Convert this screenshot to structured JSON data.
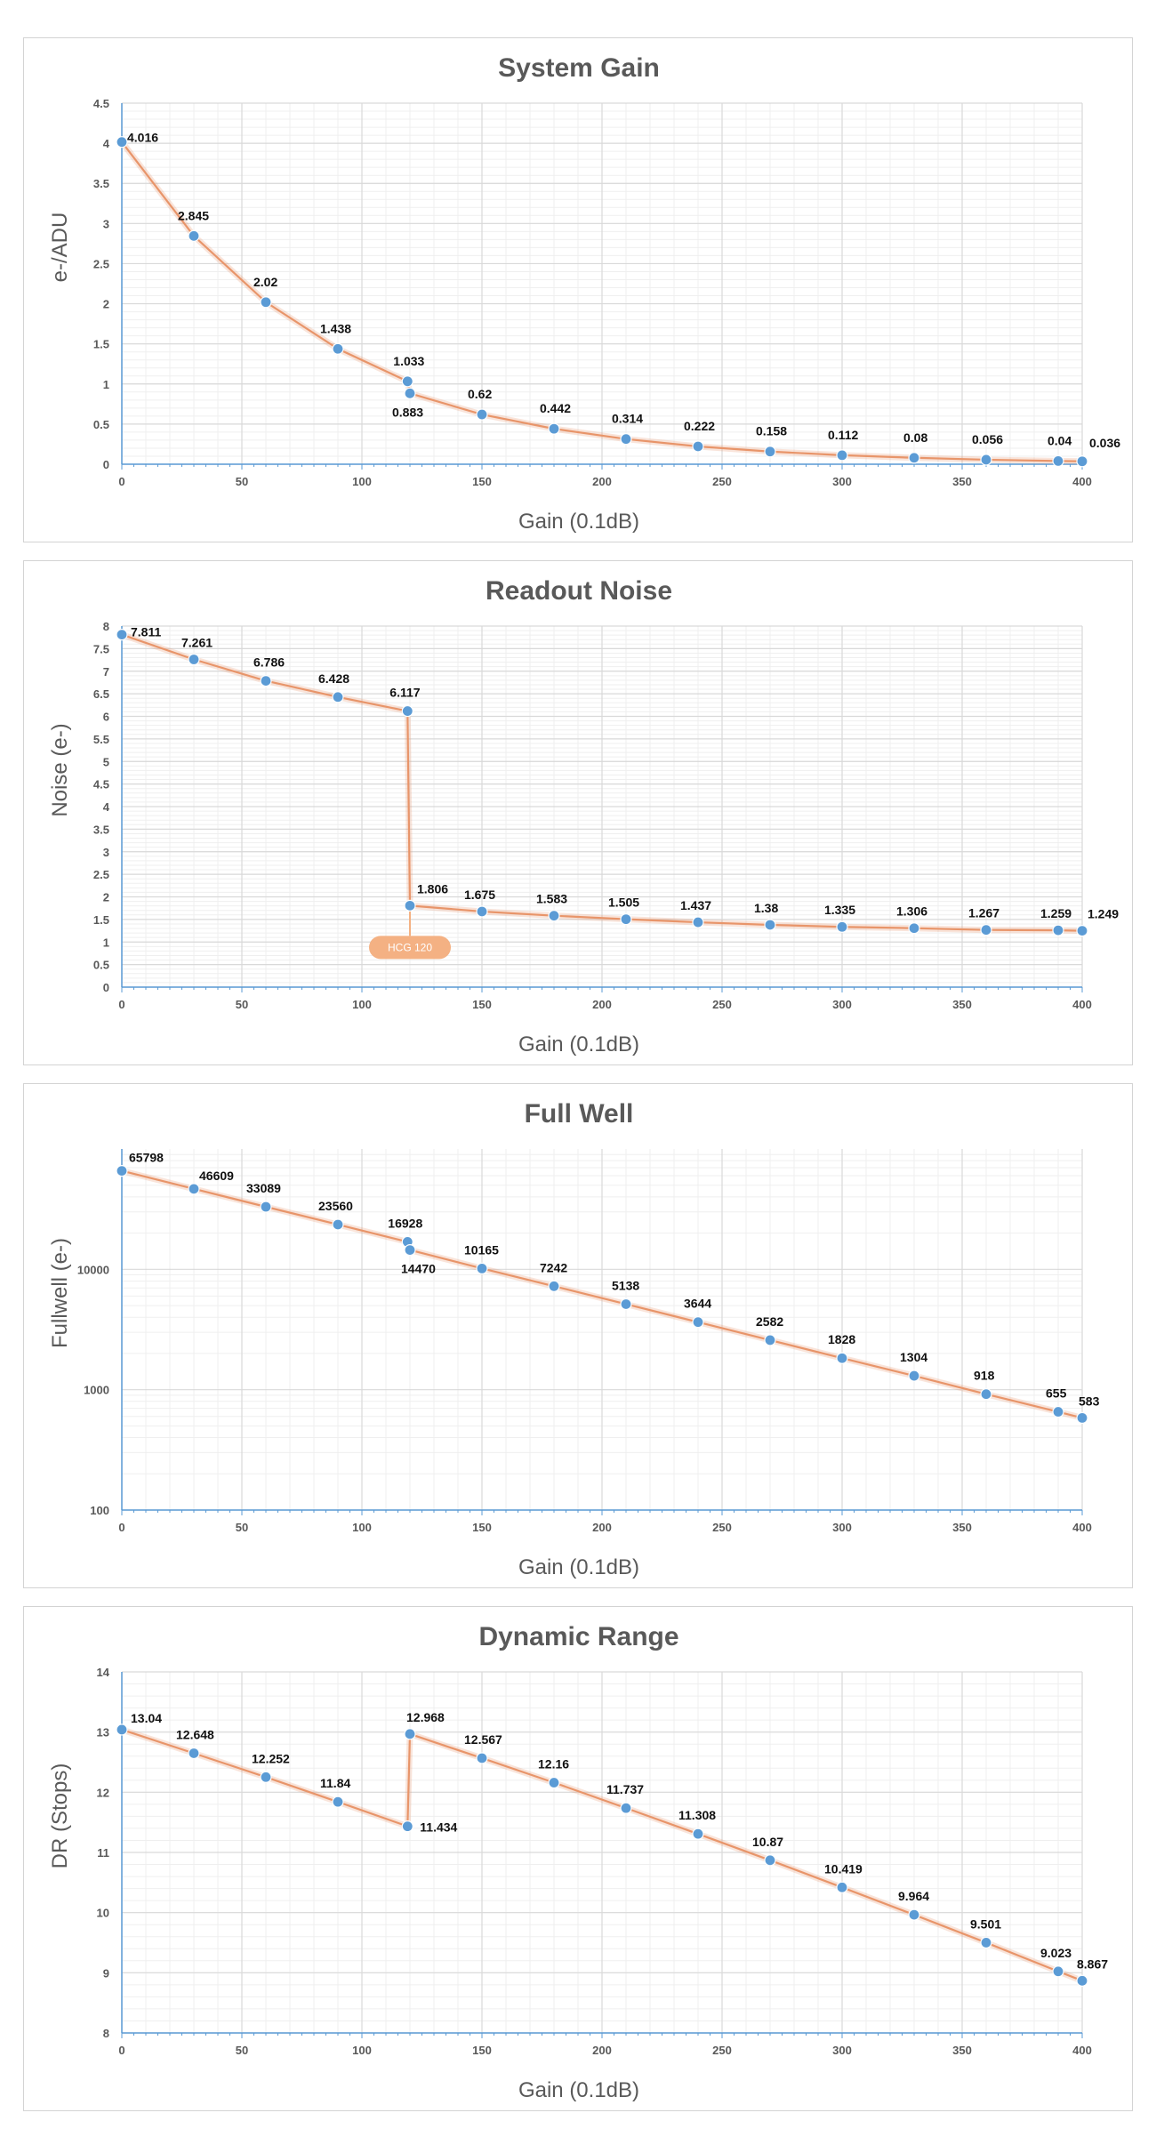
{
  "colors": {
    "line": "#e8956a",
    "marker": "#5b9bd5",
    "axis": "#5b9bd5",
    "grid_major": "#d9d9d9",
    "grid_minor": "#efefef",
    "annotation_fill": "#f4b183"
  },
  "chart_data": [
    {
      "type": "line",
      "title": "System Gain",
      "xlabel": "Gain (0.1dB)",
      "ylabel": "e-/ADU",
      "xlim": [
        0,
        400
      ],
      "ylim": [
        0,
        4.5
      ],
      "x_ticks": [
        "0",
        "50",
        "100",
        "150",
        "200",
        "250",
        "300",
        "350",
        "400"
      ],
      "y_ticks": [
        "0",
        "0.5",
        "1",
        "1.5",
        "2",
        "2.5",
        "3",
        "3.5",
        "4",
        "4.5"
      ],
      "grid": true,
      "series": [
        {
          "x": [
            0,
            30,
            60,
            90,
            119,
            120,
            150,
            180,
            210,
            240,
            270,
            300,
            330,
            360,
            390,
            400
          ],
          "values": [
            4.016,
            2.845,
            2.02,
            1.438,
            1.033,
            0.883,
            0.62,
            0.442,
            0.314,
            0.222,
            0.158,
            0.112,
            0.08,
            0.056,
            0.04,
            0.036
          ],
          "labels": [
            "4.016",
            "2.845",
            "2.02",
            "1.438",
            "1.033",
            "0.883",
            "0.62",
            "0.442",
            "0.314",
            "0.222",
            "0.158",
            "0.112",
            "0.08",
            "0.056",
            "0.04",
            "0.036"
          ]
        }
      ]
    },
    {
      "type": "line",
      "title": "Readout Noise",
      "xlabel": "Gain (0.1dB)",
      "ylabel": "Noise (e-)",
      "xlim": [
        0,
        400
      ],
      "ylim": [
        0,
        8
      ],
      "x_ticks": [
        "0",
        "50",
        "100",
        "150",
        "200",
        "250",
        "300",
        "350",
        "400"
      ],
      "y_ticks": [
        "0",
        "0.5",
        "1",
        "1.5",
        "2",
        "2.5",
        "3",
        "3.5",
        "4",
        "4.5",
        "5",
        "5.5",
        "6",
        "6.5",
        "7",
        "7.5",
        "8"
      ],
      "grid": true,
      "annotations": [
        {
          "text": "HCG 120",
          "x": 120,
          "y": 1.806
        }
      ],
      "series": [
        {
          "x": [
            0,
            30,
            60,
            90,
            119,
            120,
            150,
            180,
            210,
            240,
            270,
            300,
            330,
            360,
            390,
            400
          ],
          "values": [
            7.811,
            7.261,
            6.786,
            6.428,
            6.117,
            1.806,
            1.675,
            1.583,
            1.505,
            1.437,
            1.38,
            1.335,
            1.306,
            1.267,
            1.259,
            1.249
          ],
          "labels": [
            "7.811",
            "7.261",
            "6.786",
            "6.428",
            "6.117",
            "1.806",
            "1.675",
            "1.583",
            "1.505",
            "1.437",
            "1.38",
            "1.335",
            "1.306",
            "1.267",
            "1.259",
            "1.249"
          ]
        }
      ]
    },
    {
      "type": "line",
      "title": "Full Well",
      "xlabel": "Gain (0.1dB)",
      "ylabel": "Fullwell (e-)",
      "xlim": [
        0,
        400
      ],
      "ylim": [
        100,
        100000
      ],
      "y_scale": "log",
      "x_ticks": [
        "0",
        "50",
        "100",
        "150",
        "200",
        "250",
        "300",
        "350",
        "400"
      ],
      "y_ticks": [
        "100",
        "1000",
        "10000"
      ],
      "grid": true,
      "series": [
        {
          "x": [
            0,
            30,
            60,
            90,
            119,
            120,
            150,
            180,
            210,
            240,
            270,
            300,
            330,
            360,
            390,
            400
          ],
          "values": [
            65798,
            46609,
            33089,
            23560,
            16928,
            14470,
            10165,
            7242,
            5138,
            3644,
            2582,
            1828,
            1304,
            918,
            655,
            583
          ],
          "labels": [
            "65798",
            "46609",
            "33089",
            "23560",
            "16928",
            "14470",
            "10165",
            "7242",
            "5138",
            "3644",
            "2582",
            "1828",
            "1304",
            "918",
            "655",
            "583"
          ]
        }
      ]
    },
    {
      "type": "line",
      "title": "Dynamic Range",
      "xlabel": "Gain (0.1dB)",
      "ylabel": "DR (Stops)",
      "xlim": [
        0,
        400
      ],
      "ylim": [
        8,
        14
      ],
      "x_ticks": [
        "0",
        "50",
        "100",
        "150",
        "200",
        "250",
        "300",
        "350",
        "400"
      ],
      "y_ticks": [
        "8",
        "9",
        "10",
        "11",
        "12",
        "13",
        "14"
      ],
      "grid": true,
      "series": [
        {
          "x": [
            0,
            30,
            60,
            90,
            119,
            120,
            150,
            180,
            210,
            240,
            270,
            300,
            330,
            360,
            390,
            400
          ],
          "values": [
            13.04,
            12.648,
            12.252,
            11.84,
            11.434,
            12.968,
            12.567,
            12.16,
            11.737,
            11.308,
            10.87,
            10.419,
            9.964,
            9.501,
            9.023,
            8.867
          ],
          "labels": [
            "13.04",
            "12.648",
            "12.252",
            "11.84",
            "11.434",
            "12.968",
            "12.567",
            "12.16",
            "11.737",
            "11.308",
            "10.87",
            "10.419",
            "9.964",
            "9.501",
            "9.023",
            "8.867"
          ]
        }
      ]
    }
  ]
}
